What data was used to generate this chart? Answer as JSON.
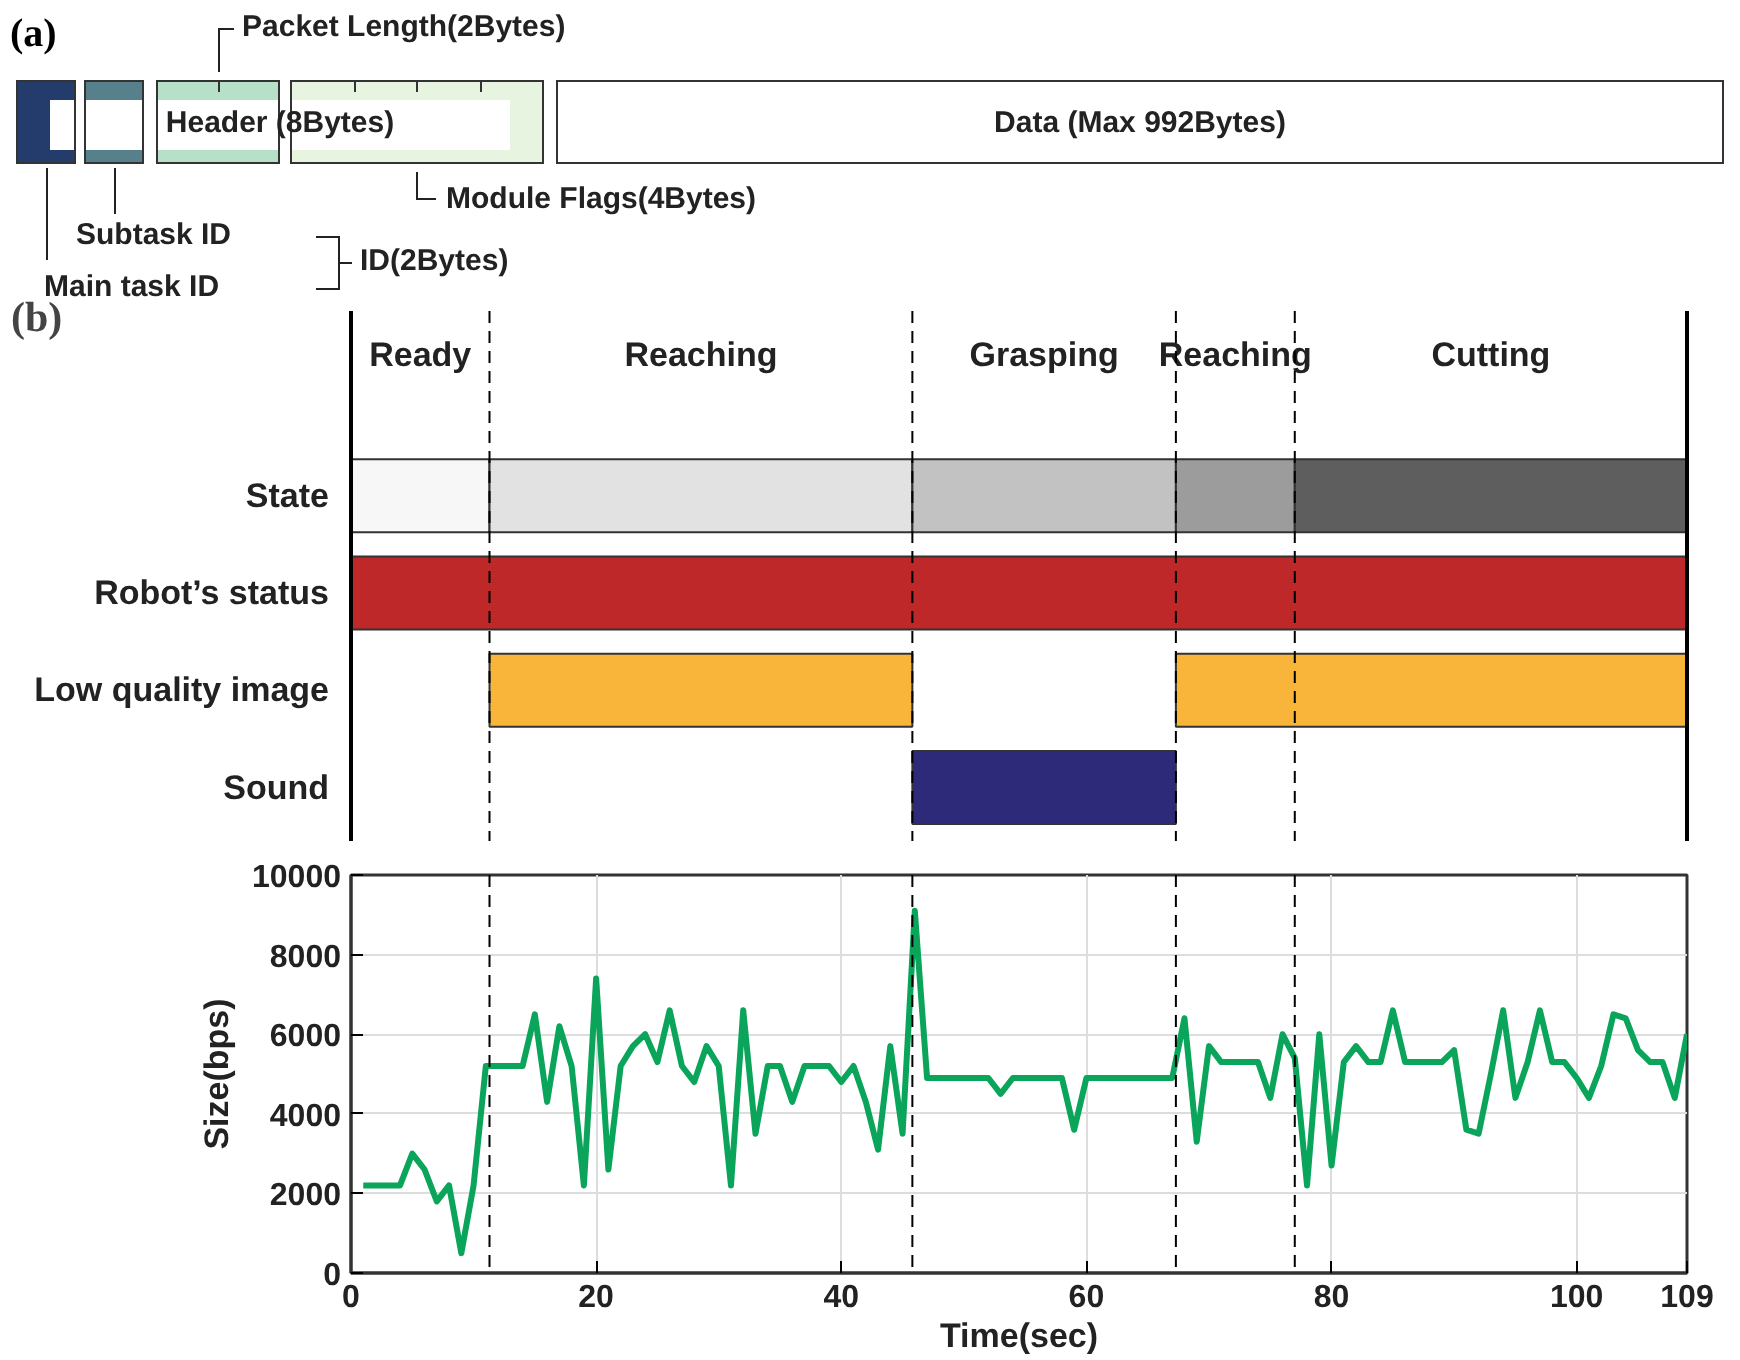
{
  "chart_data": [
    {
      "type": "other",
      "title": "(a)",
      "annotations": [
        "Packet Length(2Bytes)",
        "Header (8Bytes)",
        "Data (Max 992Bytes)",
        "Module Flags(4Bytes)",
        "Subtask ID",
        "Main task ID",
        "ID(2Bytes)"
      ]
    },
    {
      "type": "bar",
      "title": "(b)",
      "orientation": "horizontal",
      "categories": [
        "State",
        "Robot’s status",
        "Low quality image",
        "Sound"
      ],
      "xlim": [
        0,
        109
      ],
      "tick_labels": "y",
      "grid": false,
      "series": [
        {
          "color": "#f7f7f7",
          "base": [
            0,
            null,
            null,
            null
          ],
          "values": [
            11.3,
            null,
            null,
            null
          ]
        },
        {
          "color": "#e2e2e2",
          "base": [
            11.3,
            null,
            null,
            null
          ],
          "values": [
            34.5,
            null,
            null,
            null
          ]
        },
        {
          "color": "#c2c2c2",
          "base": [
            45.8,
            null,
            null,
            null
          ],
          "values": [
            21.5,
            null,
            null,
            null
          ]
        },
        {
          "color": "#9c9c9c",
          "base": [
            67.3,
            null,
            null,
            null
          ],
          "values": [
            9.7,
            null,
            null,
            null
          ]
        },
        {
          "color": "#5e5e5e",
          "base": [
            77,
            null,
            null,
            null
          ],
          "values": [
            32,
            null,
            null,
            null
          ]
        },
        {
          "color": "#be2828",
          "base": [
            null,
            0,
            null,
            null
          ],
          "values": [
            null,
            109,
            null,
            null
          ]
        },
        {
          "color": "#f9b43a",
          "base": [
            null,
            null,
            11.3,
            null
          ],
          "values": [
            null,
            null,
            34.5,
            null
          ]
        },
        {
          "color": "#f9b43a",
          "base": [
            null,
            null,
            67.3,
            null
          ],
          "values": [
            null,
            null,
            41.7,
            null
          ]
        },
        {
          "color": "#2e2a7a",
          "base": [
            null,
            null,
            null,
            45.8
          ],
          "values": [
            null,
            null,
            null,
            21.5
          ]
        }
      ],
      "annotations": [
        "Ready",
        "Reaching",
        "Grasping",
        "Reaching",
        "Cutting"
      ],
      "ref_lines": [
        {
          "axis": "x",
          "value": 11.3,
          "line_style": "dashed",
          "color": "#000000"
        },
        {
          "axis": "x",
          "value": 45.8,
          "line_style": "dashed",
          "color": "#000000"
        },
        {
          "axis": "x",
          "value": 67.3,
          "line_style": "dashed",
          "color": "#000000"
        },
        {
          "axis": "x",
          "value": 77,
          "line_style": "dashed",
          "color": "#000000"
        }
      ]
    },
    {
      "type": "line",
      "xlabel": "Time(sec)",
      "ylabel": "Size(bps)",
      "xlim": [
        0,
        109
      ],
      "ylim": [
        0,
        10000
      ],
      "xticks": [
        0,
        20,
        40,
        60,
        80,
        100,
        109
      ],
      "yticks": [
        0,
        2000,
        4000,
        6000,
        8000,
        10000
      ],
      "grid": true,
      "marker": "none",
      "line_style": "solid",
      "x": [
        1,
        2,
        3,
        4,
        5,
        6,
        7,
        8,
        9,
        10,
        11,
        12,
        13,
        14,
        15,
        16,
        17,
        18,
        19,
        20,
        21,
        22,
        23,
        24,
        25,
        26,
        27,
        28,
        29,
        30,
        31,
        32,
        33,
        34,
        35,
        36,
        37,
        38,
        39,
        40,
        41,
        42,
        43,
        44,
        45,
        46,
        47,
        48,
        49,
        50,
        51,
        52,
        53,
        54,
        55,
        56,
        57,
        58,
        59,
        60,
        61,
        62,
        63,
        64,
        65,
        66,
        67,
        68,
        69,
        70,
        71,
        72,
        73,
        74,
        75,
        76,
        77,
        78,
        79,
        80,
        81,
        82,
        83,
        84,
        85,
        86,
        87,
        88,
        89,
        90,
        91,
        92,
        93,
        94,
        95,
        96,
        97,
        98,
        99,
        100,
        101,
        102,
        103,
        104,
        105,
        106,
        107,
        108,
        109
      ],
      "series": [
        {
          "color": "#0aa55a",
          "values": [
            2200,
            2200,
            2200,
            2200,
            3000,
            2600,
            1800,
            2200,
            500,
            2200,
            5200,
            5200,
            5200,
            5200,
            6500,
            4300,
            6200,
            5200,
            2200,
            7400,
            2600,
            5200,
            5700,
            6000,
            5300,
            6600,
            5200,
            4800,
            5700,
            5200,
            2200,
            6600,
            3500,
            5200,
            5200,
            4300,
            5200,
            5200,
            5200,
            4800,
            5200,
            4300,
            3100,
            5700,
            3500,
            9100,
            4900,
            4900,
            4900,
            4900,
            4900,
            4900,
            4500,
            4900,
            4900,
            4900,
            4900,
            4900,
            3600,
            4900,
            4900,
            4900,
            4900,
            4900,
            4900,
            4900,
            4900,
            6400,
            3300,
            5700,
            5300,
            5300,
            5300,
            5300,
            4400,
            6000,
            5400,
            2200,
            6000,
            2700,
            5300,
            5700,
            5300,
            5300,
            6600,
            5300,
            5300,
            5300,
            5300,
            5600,
            3600,
            3500,
            5000,
            6600,
            4400,
            5300,
            6600,
            5300,
            5300,
            4900,
            4400,
            5200,
            6500,
            6400,
            5600,
            5300,
            5300,
            4400,
            6000
          ]
        }
      ],
      "ref_lines": [
        {
          "axis": "x",
          "value": 11.3,
          "line_style": "dashed",
          "color": "#000000"
        },
        {
          "axis": "x",
          "value": 45.8,
          "line_style": "dashed",
          "color": "#000000"
        },
        {
          "axis": "x",
          "value": 67.3,
          "line_style": "dashed",
          "color": "#000000"
        },
        {
          "axis": "x",
          "value": 77,
          "line_style": "dashed",
          "color": "#000000"
        }
      ]
    }
  ]
}
